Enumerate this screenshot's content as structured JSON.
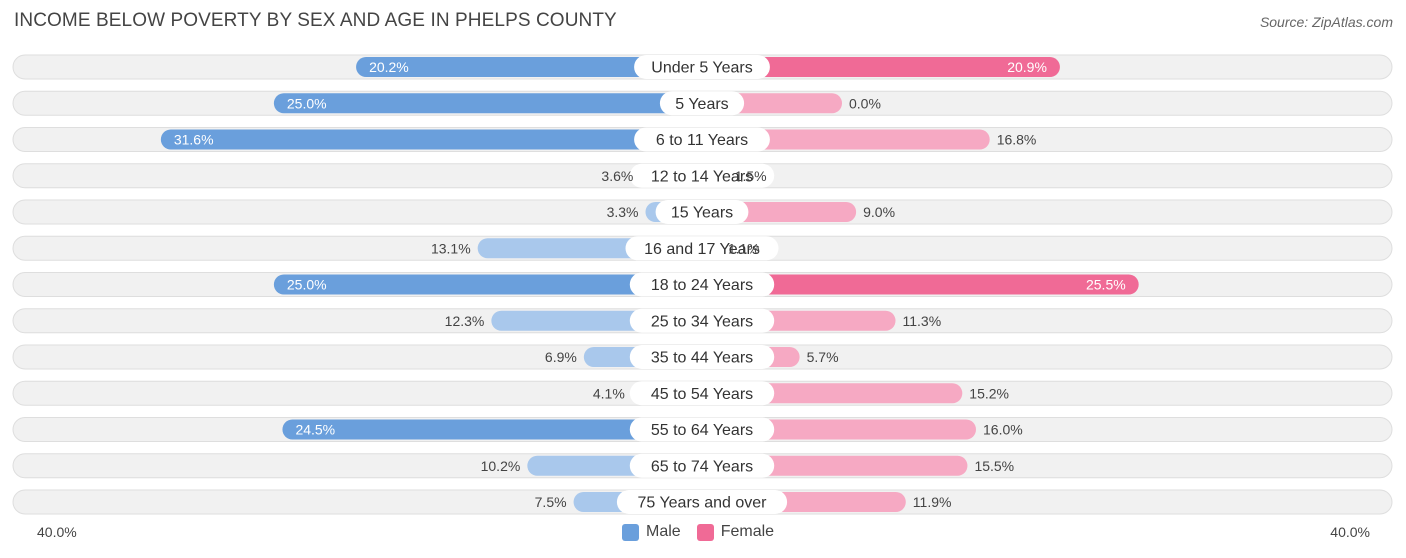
{
  "title": "INCOME BELOW POVERTY BY SEX AND AGE IN PHELPS COUNTY",
  "source": "Source: ZipAtlas.com",
  "axis": {
    "left_label": "40.0%",
    "right_label": "40.0%"
  },
  "legend": {
    "male": "Male",
    "female": "Female"
  },
  "colors": {
    "male_strong": "#6a9fdc",
    "male_light": "#a9c8ec",
    "female_strong": "#f06a96",
    "female_light": "#f6a9c3",
    "track": "#f1f1f1",
    "track_border": "#dedede"
  },
  "chart_data": {
    "type": "bar",
    "orientation": "horizontal-diverging",
    "title": "INCOME BELOW POVERTY BY SEX AND AGE IN PHELPS COUNTY",
    "xlim": [
      -40,
      40
    ],
    "categories": [
      "Under 5 Years",
      "5 Years",
      "6 to 11 Years",
      "12 to 14 Years",
      "15 Years",
      "16 and 17 Years",
      "18 to 24 Years",
      "25 to 34 Years",
      "35 to 44 Years",
      "45 to 54 Years",
      "55 to 64 Years",
      "65 to 74 Years",
      "75 Years and over"
    ],
    "series": [
      {
        "name": "Male",
        "values": [
          20.2,
          25.0,
          31.6,
          3.6,
          3.3,
          13.1,
          25.0,
          12.3,
          6.9,
          4.1,
          24.5,
          10.2,
          7.5
        ],
        "labels": [
          "20.2%",
          "25.0%",
          "31.6%",
          "3.6%",
          "3.3%",
          "13.1%",
          "25.0%",
          "12.3%",
          "6.9%",
          "4.1%",
          "24.5%",
          "10.2%",
          "7.5%"
        ]
      },
      {
        "name": "Female",
        "values": [
          20.9,
          0.0,
          16.8,
          1.5,
          9.0,
          1.1,
          25.5,
          11.3,
          5.7,
          15.2,
          16.0,
          15.5,
          11.9
        ],
        "labels": [
          "20.9%",
          "0.0%",
          "16.8%",
          "1.5%",
          "9.0%",
          "1.1%",
          "25.5%",
          "11.3%",
          "5.7%",
          "15.2%",
          "16.0%",
          "15.5%",
          "11.9%"
        ]
      }
    ]
  }
}
